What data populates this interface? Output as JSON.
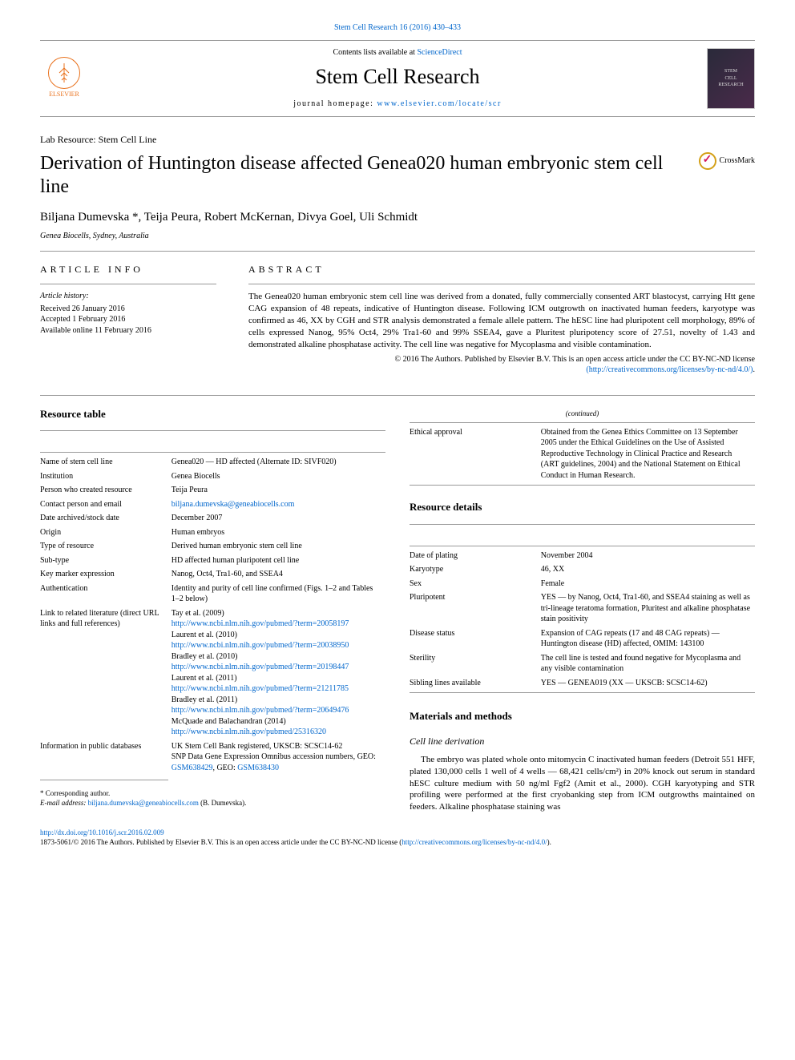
{
  "top_link": {
    "text": "Stem Cell Research 16 (2016) 430–433",
    "href": "#"
  },
  "header": {
    "contents_prefix": "Contents lists available at ",
    "contents_link": "ScienceDirect",
    "journal_title": "Stem Cell Research",
    "homepage_prefix": "journal homepage: ",
    "homepage_link": "www.elsevier.com/locate/scr",
    "elsevier_label": "ELSEVIER",
    "cover_label1": "STEM",
    "cover_label2": "CELL",
    "cover_label3": "RESEARCH"
  },
  "article": {
    "type": "Lab Resource: Stem Cell Line",
    "title": "Derivation of Huntington disease affected Genea020 human embryonic stem cell line",
    "crossmark": "CrossMark",
    "authors": "Biljana Dumevska *, Teija Peura, Robert McKernan, Divya Goel, Uli Schmidt",
    "affiliation": "Genea Biocells, Sydney, Australia"
  },
  "info": {
    "article_info_heading": "article info",
    "abstract_heading": "abstract",
    "history_label": "Article history:",
    "history_1": "Received 26 January 2016",
    "history_2": "Accepted 1 February 2016",
    "history_3": "Available online 11 February 2016",
    "abstract_text": "The Genea020 human embryonic stem cell line was derived from a donated, fully commercially consented ART blastocyst, carrying Htt gene CAG expansion of 48 repeats, indicative of Huntington disease. Following ICM outgrowth on inactivated human feeders, karyotype was confirmed as 46, XX by CGH and STR analysis demonstrated a female allele pattern. The hESC line had pluripotent cell morphology, 89% of cells expressed Nanog, 95% Oct4, 29% Tra1-60 and 99% SSEA4, gave a Pluritest pluripotency score of 27.51, novelty of 1.43 and demonstrated alkaline phosphatase activity. The cell line was negative for Mycoplasma and visible contamination.",
    "copyright": "© 2016 The Authors. Published by Elsevier B.V. This is an open access article under the CC BY-NC-ND license",
    "license_link_text": "(http://creativecommons.org/licenses/by-nc-nd/4.0/)",
    "license_link_period": "."
  },
  "resource_table": {
    "heading": "Resource table",
    "rows": [
      {
        "k": "Name of stem cell line",
        "v": "Genea020 — HD affected (Alternate ID: SIVF020)"
      },
      {
        "k": "Institution",
        "v": "Genea Biocells"
      },
      {
        "k": "Person who created resource",
        "v": "Teija Peura"
      },
      {
        "k": "Contact person and email",
        "v": "",
        "link": "biljana.dumevska@geneabiocells.com"
      },
      {
        "k": "Date archived/stock date",
        "v": "December 2007"
      },
      {
        "k": "Origin",
        "v": "Human embryos"
      },
      {
        "k": "Type of resource",
        "v": "Derived human embryonic stem cell line"
      },
      {
        "k": "Sub-type",
        "v": "HD affected human pluripotent cell line"
      },
      {
        "k": "Key marker expression",
        "v": "Nanog, Oct4, Tra1-60, and SSEA4"
      },
      {
        "k": "Authentication",
        "v": "Identity and purity of cell line confirmed (Figs. 1–2 and Tables 1–2 below)"
      }
    ],
    "lit_key": "Link to related literature (direct URL links and full references)",
    "lit_items": [
      {
        "ref": "Tay et al. (2009)",
        "url": "http://www.ncbi.nlm.nih.gov/pubmed/?term=20058197"
      },
      {
        "ref": "Laurent et al. (2010)",
        "url": "http://www.ncbi.nlm.nih.gov/pubmed/?term=20038950"
      },
      {
        "ref": "Bradley et al. (2010)",
        "url": "http://www.ncbi.nlm.nih.gov/pubmed/?term=20198447"
      },
      {
        "ref": "Laurent et al. (2011)",
        "url": "http://www.ncbi.nlm.nih.gov/pubmed/?term=21211785"
      },
      {
        "ref": "Bradley et al. (2011)",
        "url": "http://www.ncbi.nlm.nih.gov/pubmed/?term=20649476"
      },
      {
        "ref": "McQuade and Balachandran (2014)",
        "url": "http://www.ncbi.nlm.nih.gov/pubmed/25316320"
      }
    ],
    "info_db_key": "Information in public databases",
    "info_db_line1": "UK Stem Cell Bank registered, UKSCB: SCSC14-62",
    "info_db_line2_pre": "SNP Data Gene Expression Omnibus accession numbers, GEO: ",
    "info_db_link1": "GSM638429",
    "info_db_mid": ", GEO: ",
    "info_db_link2": "GSM638430"
  },
  "resource_table_cont": {
    "continued": "(continued)",
    "ethical_key": "Ethical approval",
    "ethical_val": "Obtained from the Genea Ethics Committee on 13 September 2005 under the Ethical Guidelines on the Use of Assisted Reproductive Technology in Clinical Practice and Research (ART guidelines, 2004) and the National Statement on Ethical Conduct in Human Research."
  },
  "resource_details": {
    "heading": "Resource details",
    "rows": [
      {
        "k": "Date of plating",
        "v": "November 2004"
      },
      {
        "k": "Karyotype",
        "v": "46, XX"
      },
      {
        "k": "Sex",
        "v": "Female"
      },
      {
        "k": "Pluripotent",
        "v": "YES — by Nanog, Oct4, Tra1-60, and SSEA4 staining as well as tri-lineage teratoma formation, Pluritest and alkaline phosphatase stain positivity"
      },
      {
        "k": "Disease status",
        "v": "Expansion of CAG repeats (17 and 48 CAG repeats) — Huntington disease (HD) affected, OMIM: 143100"
      },
      {
        "k": "Sterility",
        "v": "The cell line is tested and found negative for Mycoplasma and any visible contamination"
      },
      {
        "k": "Sibling lines available",
        "v": "YES — GENEA019 (XX — UKSCB: SCSC14-62)"
      }
    ]
  },
  "methods": {
    "heading": "Materials and methods",
    "subheading": "Cell line derivation",
    "para": "The embryo was plated whole onto mitomycin C inactivated human feeders (Detroit 551 HFF, plated 130,000 cells 1 well of 4 wells — 68,421 cells/cm²) in 20% knock out serum in standard hESC culture medium with 50 ng/ml Fgf2 (Amit et al., 2000). CGH karyotyping and STR profiling were performed at the first cryobanking step from ICM outgrowths maintained on feeders. Alkaline phosphatase staining was"
  },
  "footer": {
    "corr_label": "* Corresponding author.",
    "email_label": "E-mail address: ",
    "email": "biljana.dumevska@geneabiocells.com",
    "email_tail": " (B. Dumevska).",
    "doi_link": "http://dx.doi.org/10.1016/j.scr.2016.02.009",
    "license_prefix": "1873-5061/© 2016 The Authors. Published by Elsevier B.V. This is an open access article under the CC BY-NC-ND license (",
    "license_url": "http://creativecommons.org/licenses/by-nc-nd/4.0/",
    "license_suffix": ")."
  },
  "colors": {
    "link": "#0066cc",
    "rule": "#999999",
    "elsevier": "#e9711c",
    "crossmark_ring": "#d4a017",
    "crossmark_mark": "#d4145a"
  }
}
